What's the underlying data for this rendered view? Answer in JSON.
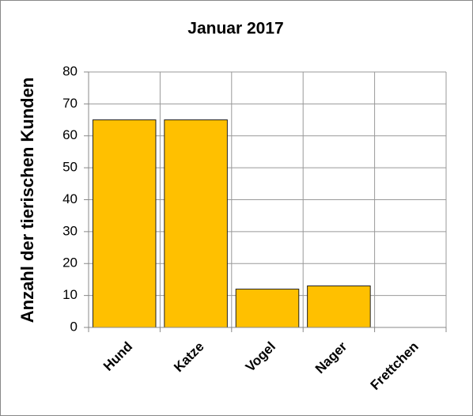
{
  "chart_data": {
    "type": "bar",
    "title": "Januar 2017",
    "y_label": "Anzahl der tierischen Kunden",
    "categories": [
      "Hund",
      "Katze",
      "Vogel",
      "Nager",
      "Frettchen"
    ],
    "values": [
      65,
      65,
      12,
      13,
      0
    ],
    "color": "#ffc000",
    "ylim": [
      0,
      80
    ],
    "yticks": [
      0,
      10,
      20,
      30,
      40,
      50,
      60,
      70,
      80
    ],
    "grid": true
  }
}
